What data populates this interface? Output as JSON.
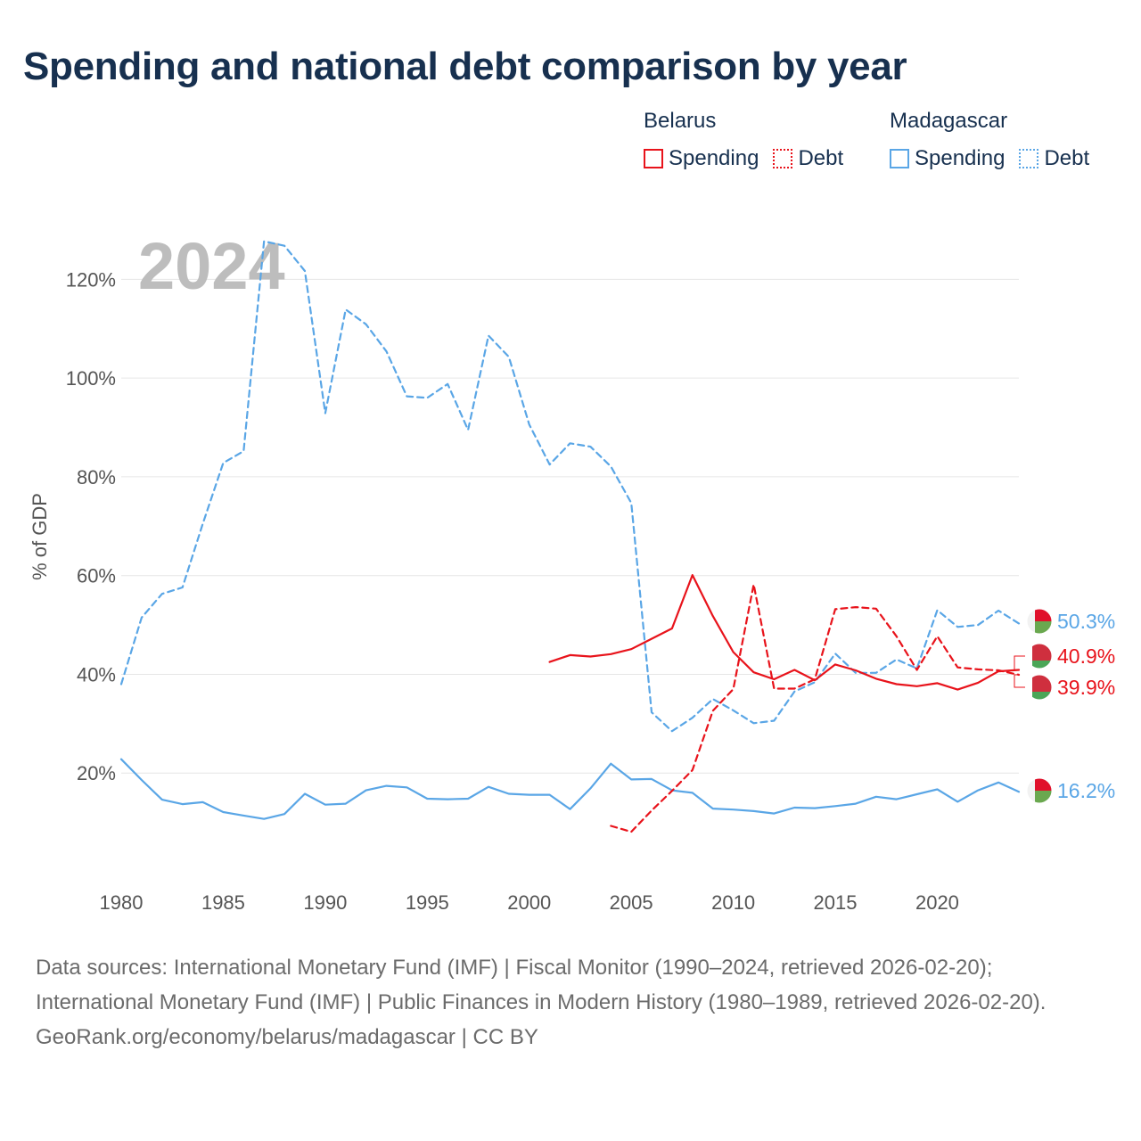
{
  "title": "Spending and national debt comparison by year",
  "legend": {
    "groups": [
      {
        "country": "Belarus",
        "spending_label": "Spending",
        "debt_label": "Debt",
        "color": "#e8131b"
      },
      {
        "country": "Madagascar",
        "spending_label": "Spending",
        "debt_label": "Debt",
        "color": "#5aa6e6"
      }
    ]
  },
  "footer": {
    "sources": "Data sources: International Monetary Fund (IMF) | Fiscal Monitor (1990–2024, retrieved 2026-02-20); International Monetary Fund (IMF) | Public Finances in Modern History (1980–1989, retrieved 2026-02-20).",
    "credit": "GeoRank.org/economy/belarus/madagascar | CC BY"
  },
  "chart_data": {
    "type": "line",
    "title": "Spending and national debt comparison by year",
    "year_label": "2024",
    "ylabel": "% of GDP",
    "xlim": [
      1980,
      2024
    ],
    "ylim": [
      0,
      130
    ],
    "x_ticks": [
      1980,
      1985,
      1990,
      1995,
      2000,
      2005,
      2010,
      2015,
      2020
    ],
    "y_ticks": [
      20,
      40,
      60,
      80,
      100,
      120
    ],
    "y_tick_labels": [
      "20%",
      "40%",
      "60%",
      "80%",
      "100%",
      "120%"
    ],
    "grid": true,
    "end_labels": [
      {
        "series": "Madagascar Debt",
        "text": "50.3%"
      },
      {
        "series": "Belarus Spending",
        "text": "40.9%"
      },
      {
        "series": "Belarus Debt",
        "text": "39.9%"
      },
      {
        "series": "Madagascar Spending",
        "text": "16.2%"
      }
    ],
    "series": [
      {
        "name": "Madagascar Debt",
        "country": "Madagascar",
        "kind": "debt",
        "color": "#5aa6e6",
        "dashed": true,
        "x": [
          1980,
          1981,
          1982,
          1983,
          1984,
          1985,
          1986,
          1987,
          1988,
          1989,
          1990,
          1991,
          1992,
          1993,
          1994,
          1995,
          1996,
          1997,
          1998,
          1999,
          2000,
          2001,
          2002,
          2003,
          2004,
          2005,
          2006,
          2007,
          2008,
          2009,
          2010,
          2011,
          2012,
          2013,
          2014,
          2015,
          2016,
          2017,
          2018,
          2019,
          2020,
          2021,
          2022,
          2023,
          2024
        ],
        "values": [
          38,
          51.5,
          56.3,
          57.6,
          70.5,
          82.8,
          85.2,
          127.7,
          126.8,
          121.7,
          92.9,
          113.9,
          110.9,
          105.4,
          96.3,
          96.0,
          98.8,
          89.5,
          108.6,
          104.3,
          90.6,
          82.5,
          86.8,
          86.1,
          82.1,
          74.7,
          32.3,
          28.5,
          31.2,
          35.0,
          32.7,
          30.1,
          30.6,
          36.5,
          38.4,
          44.2,
          40.3,
          40.3,
          43.0,
          41.2,
          53.0,
          49.6,
          50.0,
          52.9,
          50.3
        ]
      },
      {
        "name": "Madagascar Spending",
        "country": "Madagascar",
        "kind": "spending",
        "color": "#5aa6e6",
        "dashed": false,
        "x": [
          1980,
          1981,
          1982,
          1983,
          1984,
          1985,
          1986,
          1987,
          1988,
          1989,
          1990,
          1991,
          1992,
          1993,
          1994,
          1995,
          1996,
          1997,
          1998,
          1999,
          2000,
          2001,
          2002,
          2003,
          2004,
          2005,
          2006,
          2007,
          2008,
          2009,
          2010,
          2011,
          2012,
          2013,
          2014,
          2015,
          2016,
          2017,
          2018,
          2019,
          2020,
          2021,
          2022,
          2023,
          2024
        ],
        "values": [
          22.8,
          18.6,
          14.6,
          13.7,
          14.1,
          12.1,
          11.4,
          10.7,
          11.7,
          15.8,
          13.6,
          13.8,
          16.5,
          17.4,
          17.1,
          14.8,
          14.7,
          14.8,
          17.2,
          15.8,
          15.6,
          15.6,
          12.7,
          16.9,
          21.9,
          18.7,
          18.8,
          16.5,
          16.0,
          12.8,
          12.6,
          12.3,
          11.8,
          13.0,
          12.9,
          13.3,
          13.8,
          15.2,
          14.7,
          15.7,
          16.7,
          14.2,
          16.5,
          18.1,
          16.2
        ]
      },
      {
        "name": "Belarus Spending",
        "country": "Belarus",
        "kind": "spending",
        "color": "#e8131b",
        "dashed": false,
        "x": [
          2001,
          2002,
          2003,
          2004,
          2005,
          2006,
          2007,
          2008,
          2009,
          2010,
          2011,
          2012,
          2013,
          2014,
          2015,
          2016,
          2017,
          2018,
          2019,
          2020,
          2021,
          2022,
          2023,
          2024
        ],
        "values": [
          42.5,
          43.9,
          43.6,
          44.1,
          45.1,
          47.2,
          49.3,
          60.1,
          51.8,
          44.5,
          40.4,
          39.0,
          40.9,
          38.8,
          42.0,
          40.8,
          39.1,
          38.0,
          37.6,
          38.2,
          36.9,
          38.3,
          40.6,
          40.9
        ]
      },
      {
        "name": "Belarus Debt",
        "country": "Belarus",
        "kind": "debt",
        "color": "#e8131b",
        "dashed": true,
        "x": [
          2004,
          2005,
          2006,
          2007,
          2008,
          2009,
          2010,
          2011,
          2012,
          2013,
          2014,
          2015,
          2016,
          2017,
          2018,
          2019,
          2020,
          2021,
          2022,
          2023,
          2024
        ],
        "values": [
          9.3,
          8.1,
          12.4,
          16.4,
          20.6,
          32.6,
          37.0,
          58.2,
          37.1,
          37.1,
          39.0,
          53.2,
          53.6,
          53.3,
          47.7,
          40.9,
          47.7,
          41.4,
          41.0,
          40.8,
          39.9
        ]
      }
    ]
  }
}
